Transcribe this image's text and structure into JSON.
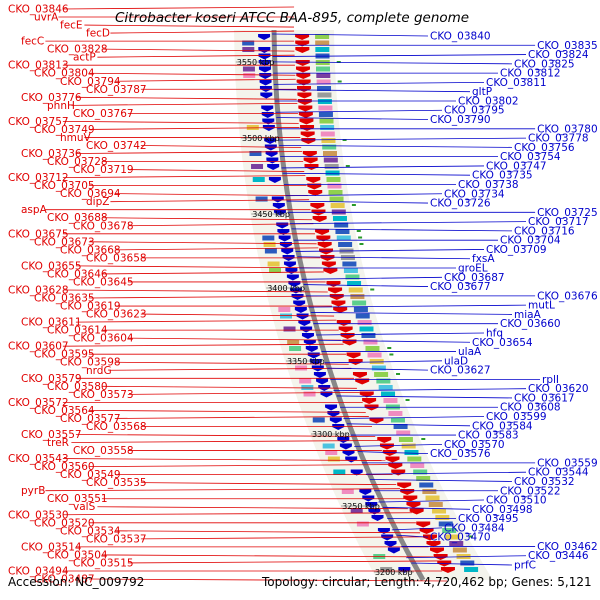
{
  "title": "Citrobacter koseri ATCC BAA-895, complete genome",
  "accession": "Accession: NC_009792",
  "topology": "Topology: circular; Length: 4,720,462 bp; Genes: 5,121",
  "colors": {
    "forward": "#e00000",
    "reverse": "#0000cc",
    "backbone": "#888888"
  },
  "kbp_markers": [
    "3550 kbp",
    "3500 kbp",
    "3450 kbp",
    "3400 kbp",
    "3350 kbp",
    "3300 kbp",
    "3250 kbp",
    "3200 kbp"
  ],
  "left_labels": [
    "CKO_03846",
    "uvrA",
    "fecE",
    "fecD",
    "fecC",
    "CKO_03828",
    "actP",
    "CKO_03813",
    "CKO_03804",
    "CKO_03794",
    "CKO_03787",
    "CKO_03776",
    "phnH",
    "CKO_03767",
    "CKO_03757",
    "CKO_03749",
    "hmuV",
    "CKO_03742",
    "CKO_03736",
    "CKO_03728",
    "CKO_03719",
    "CKO_03712",
    "CKO_03705",
    "CKO_03694",
    "dipZ",
    "aspA",
    "CKO_03688",
    "CKO_03678",
    "CKO_03675",
    "CKO_03673",
    "CKO_03668",
    "CKO_03658",
    "CKO_03655",
    "CKO_03646",
    "CKO_03645",
    "CKO_03628",
    "CKO_03635",
    "CKO_03619",
    "CKO_03623",
    "CKO_03611",
    "CKO_03614",
    "CKO_03604",
    "CKO_03607",
    "CKO_03595",
    "CKO_03598",
    "nrdG",
    "CKO_03579",
    "CKO_03580",
    "CKO_03573",
    "CKO_03572",
    "CKO_03564",
    "CKO_03577",
    "CKO_03568",
    "CKO_03557",
    "treR",
    "CKO_03558",
    "CKO_03543",
    "CKO_03560",
    "CKO_03549",
    "CKO_03535",
    "pyrB",
    "CKO_03551",
    "valS",
    "CKO_03530",
    "CKO_03520",
    "CKO_03534",
    "CKO_03537",
    "CKO_03514",
    "CKO_03504",
    "CKO_03515",
    "CKO_03494",
    "CKO_03487"
  ],
  "right_labels": [
    "CKO_03840",
    "CKO_03835",
    "CKO_03824",
    "CKO_03825",
    "CKO_03812",
    "CKO_03811",
    "gltP",
    "CKO_03802",
    "CKO_03795",
    "CKO_03790",
    "CKO_03780",
    "CKO_03778",
    "CKO_03756",
    "CKO_03754",
    "CKO_03747",
    "CKO_03735",
    "CKO_03738",
    "CKO_03734",
    "CKO_03726",
    "CKO_03725",
    "CKO_03717",
    "CKO_03716",
    "CKO_03704",
    "CKO_03709",
    "fxsA",
    "groEL",
    "CKO_03687",
    "CKO_03677",
    "CKO_03676",
    "mutL",
    "miaA",
    "CKO_03660",
    "hfq",
    "CKO_03654",
    "ulaA",
    "ulaD",
    "CKO_03627",
    "rplI",
    "CKO_03620",
    "CKO_03617",
    "CKO_03608",
    "CKO_03599",
    "CKO_03584",
    "CKO_03583",
    "CKO_03570",
    "CKO_03576",
    "CKO_03559",
    "CKO_03544",
    "CKO_03532",
    "CKO_03522",
    "CKO_03510",
    "CKO_03498",
    "CKO_03495",
    "CKO_03484",
    "CKO_03470",
    "CKO_03462",
    "CKO_03446",
    "prfC"
  ]
}
